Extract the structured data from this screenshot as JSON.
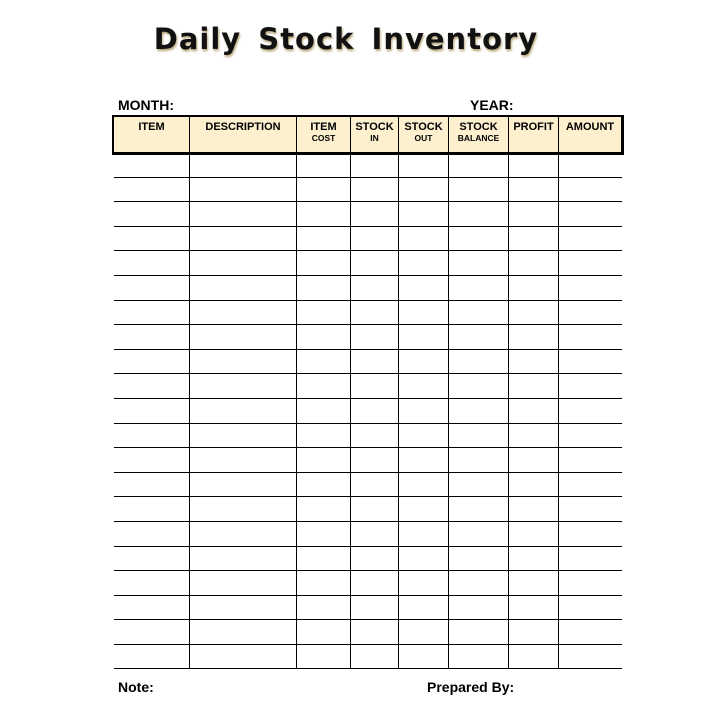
{
  "title": "Daily Stock Inventory",
  "labels": {
    "month": "MONTH:",
    "year": "YEAR:",
    "note": "Note:",
    "prepared_by": "Prepared By:"
  },
  "table": {
    "columns": [
      {
        "main": "ITEM",
        "sub": ""
      },
      {
        "main": "DESCRIPTION",
        "sub": ""
      },
      {
        "main": "ITEM",
        "sub": "COST"
      },
      {
        "main": "STOCK",
        "sub": "IN"
      },
      {
        "main": "STOCK",
        "sub": "OUT"
      },
      {
        "main": "STOCK",
        "sub": "BALANCE"
      },
      {
        "main": "PROFIT",
        "sub": ""
      },
      {
        "main": "AMOUNT",
        "sub": ""
      }
    ],
    "header_fill": "#fdf0cf"
  }
}
